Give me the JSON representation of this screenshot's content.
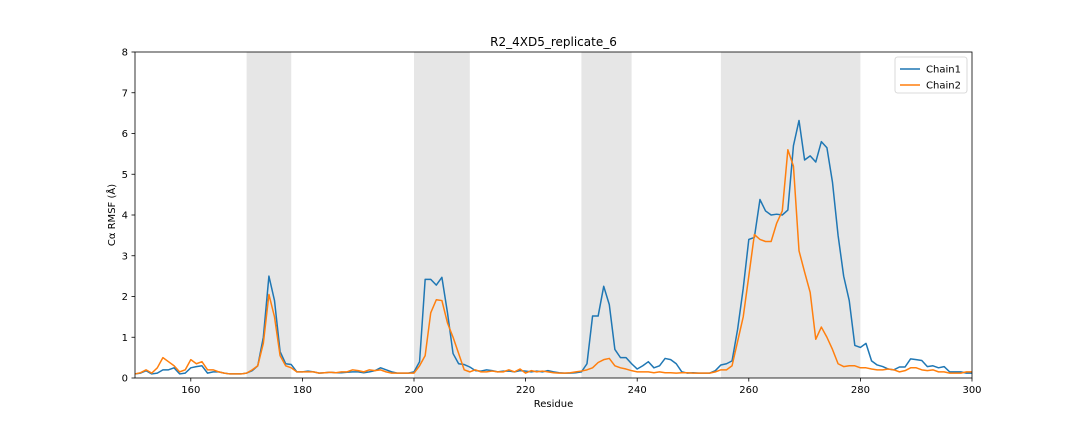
{
  "chart_data": {
    "type": "line",
    "title": "R2_4XD5_replicate_6",
    "xlabel": "Residue",
    "ylabel": "Cα RMSF (Å)",
    "xlim": [
      150,
      300
    ],
    "ylim": [
      0,
      8
    ],
    "xticks": [
      160,
      180,
      200,
      220,
      240,
      260,
      280,
      300
    ],
    "yticks": [
      0,
      1,
      2,
      3,
      4,
      5,
      6,
      7,
      8
    ],
    "grid": false,
    "legend_position": "upper right",
    "shaded_regions": [
      [
        170,
        178
      ],
      [
        200,
        210
      ],
      [
        230,
        239
      ],
      [
        255,
        280
      ]
    ],
    "shade_color": "#e6e6e6",
    "series": [
      {
        "name": "Chain1",
        "color": "#1f77b4",
        "points": [
          [
            150,
            0.1
          ],
          [
            151,
            0.12
          ],
          [
            152,
            0.18
          ],
          [
            153,
            0.1
          ],
          [
            154,
            0.12
          ],
          [
            155,
            0.2
          ],
          [
            156,
            0.2
          ],
          [
            157,
            0.25
          ],
          [
            158,
            0.1
          ],
          [
            159,
            0.12
          ],
          [
            160,
            0.25
          ],
          [
            161,
            0.28
          ],
          [
            162,
            0.3
          ],
          [
            163,
            0.12
          ],
          [
            164,
            0.15
          ],
          [
            165,
            0.15
          ],
          [
            166,
            0.12
          ],
          [
            167,
            0.1
          ],
          [
            168,
            0.1
          ],
          [
            169,
            0.1
          ],
          [
            170,
            0.12
          ],
          [
            171,
            0.18
          ],
          [
            172,
            0.3
          ],
          [
            173,
            1.0
          ],
          [
            174,
            2.5
          ],
          [
            175,
            1.9
          ],
          [
            176,
            0.65
          ],
          [
            177,
            0.35
          ],
          [
            178,
            0.33
          ],
          [
            179,
            0.15
          ],
          [
            180,
            0.15
          ],
          [
            181,
            0.17
          ],
          [
            182,
            0.15
          ],
          [
            183,
            0.12
          ],
          [
            184,
            0.13
          ],
          [
            185,
            0.14
          ],
          [
            186,
            0.13
          ],
          [
            187,
            0.13
          ],
          [
            188,
            0.14
          ],
          [
            189,
            0.15
          ],
          [
            190,
            0.15
          ],
          [
            191,
            0.13
          ],
          [
            192,
            0.15
          ],
          [
            193,
            0.18
          ],
          [
            194,
            0.25
          ],
          [
            195,
            0.2
          ],
          [
            196,
            0.15
          ],
          [
            197,
            0.12
          ],
          [
            198,
            0.12
          ],
          [
            199,
            0.12
          ],
          [
            200,
            0.15
          ],
          [
            201,
            0.4
          ],
          [
            202,
            2.42
          ],
          [
            203,
            2.42
          ],
          [
            204,
            2.28
          ],
          [
            205,
            2.47
          ],
          [
            206,
            1.6
          ],
          [
            207,
            0.6
          ],
          [
            208,
            0.35
          ],
          [
            209,
            0.33
          ],
          [
            210,
            0.27
          ],
          [
            211,
            0.18
          ],
          [
            212,
            0.17
          ],
          [
            213,
            0.2
          ],
          [
            214,
            0.18
          ],
          [
            215,
            0.15
          ],
          [
            216,
            0.17
          ],
          [
            217,
            0.17
          ],
          [
            218,
            0.15
          ],
          [
            219,
            0.18
          ],
          [
            220,
            0.17
          ],
          [
            221,
            0.15
          ],
          [
            222,
            0.17
          ],
          [
            223,
            0.15
          ],
          [
            224,
            0.18
          ],
          [
            225,
            0.15
          ],
          [
            226,
            0.13
          ],
          [
            227,
            0.12
          ],
          [
            228,
            0.12
          ],
          [
            229,
            0.13
          ],
          [
            230,
            0.15
          ],
          [
            231,
            0.35
          ],
          [
            232,
            1.52
          ],
          [
            233,
            1.52
          ],
          [
            234,
            2.25
          ],
          [
            235,
            1.8
          ],
          [
            236,
            0.7
          ],
          [
            237,
            0.5
          ],
          [
            238,
            0.5
          ],
          [
            239,
            0.35
          ],
          [
            240,
            0.22
          ],
          [
            241,
            0.3
          ],
          [
            242,
            0.4
          ],
          [
            243,
            0.25
          ],
          [
            244,
            0.3
          ],
          [
            245,
            0.48
          ],
          [
            246,
            0.45
          ],
          [
            247,
            0.35
          ],
          [
            248,
            0.15
          ],
          [
            249,
            0.12
          ],
          [
            250,
            0.13
          ],
          [
            251,
            0.12
          ],
          [
            252,
            0.12
          ],
          [
            253,
            0.12
          ],
          [
            254,
            0.18
          ],
          [
            255,
            0.32
          ],
          [
            256,
            0.35
          ],
          [
            257,
            0.42
          ],
          [
            258,
            1.2
          ],
          [
            259,
            2.2
          ],
          [
            260,
            3.4
          ],
          [
            261,
            3.45
          ],
          [
            262,
            4.38
          ],
          [
            263,
            4.1
          ],
          [
            264,
            4.0
          ],
          [
            265,
            4.02
          ],
          [
            266,
            4.0
          ],
          [
            267,
            4.12
          ],
          [
            268,
            5.7
          ],
          [
            269,
            6.32
          ],
          [
            270,
            5.35
          ],
          [
            271,
            5.45
          ],
          [
            272,
            5.3
          ],
          [
            273,
            5.8
          ],
          [
            274,
            5.65
          ],
          [
            275,
            4.8
          ],
          [
            276,
            3.5
          ],
          [
            277,
            2.5
          ],
          [
            278,
            1.9
          ],
          [
            279,
            0.8
          ],
          [
            280,
            0.75
          ],
          [
            281,
            0.85
          ],
          [
            282,
            0.42
          ],
          [
            283,
            0.32
          ],
          [
            284,
            0.28
          ],
          [
            285,
            0.22
          ],
          [
            286,
            0.2
          ],
          [
            287,
            0.27
          ],
          [
            288,
            0.27
          ],
          [
            289,
            0.47
          ],
          [
            290,
            0.45
          ],
          [
            291,
            0.43
          ],
          [
            292,
            0.28
          ],
          [
            293,
            0.3
          ],
          [
            294,
            0.25
          ],
          [
            295,
            0.28
          ],
          [
            296,
            0.15
          ],
          [
            297,
            0.15
          ],
          [
            298,
            0.15
          ],
          [
            299,
            0.12
          ],
          [
            300,
            0.12
          ]
        ]
      },
      {
        "name": "Chain2",
        "color": "#ff7f0e",
        "points": [
          [
            150,
            0.1
          ],
          [
            151,
            0.13
          ],
          [
            152,
            0.2
          ],
          [
            153,
            0.12
          ],
          [
            154,
            0.25
          ],
          [
            155,
            0.5
          ],
          [
            156,
            0.4
          ],
          [
            157,
            0.3
          ],
          [
            158,
            0.15
          ],
          [
            159,
            0.2
          ],
          [
            160,
            0.45
          ],
          [
            161,
            0.35
          ],
          [
            162,
            0.4
          ],
          [
            163,
            0.2
          ],
          [
            164,
            0.2
          ],
          [
            165,
            0.15
          ],
          [
            166,
            0.12
          ],
          [
            167,
            0.1
          ],
          [
            168,
            0.1
          ],
          [
            169,
            0.1
          ],
          [
            170,
            0.12
          ],
          [
            171,
            0.2
          ],
          [
            172,
            0.3
          ],
          [
            173,
            0.85
          ],
          [
            174,
            2.05
          ],
          [
            175,
            1.5
          ],
          [
            176,
            0.55
          ],
          [
            177,
            0.3
          ],
          [
            178,
            0.25
          ],
          [
            179,
            0.15
          ],
          [
            180,
            0.15
          ],
          [
            181,
            0.15
          ],
          [
            182,
            0.15
          ],
          [
            183,
            0.12
          ],
          [
            184,
            0.13
          ],
          [
            185,
            0.14
          ],
          [
            186,
            0.13
          ],
          [
            187,
            0.15
          ],
          [
            188,
            0.15
          ],
          [
            189,
            0.2
          ],
          [
            190,
            0.18
          ],
          [
            191,
            0.15
          ],
          [
            192,
            0.2
          ],
          [
            193,
            0.18
          ],
          [
            194,
            0.2
          ],
          [
            195,
            0.15
          ],
          [
            196,
            0.12
          ],
          [
            197,
            0.12
          ],
          [
            198,
            0.12
          ],
          [
            199,
            0.12
          ],
          [
            200,
            0.12
          ],
          [
            201,
            0.3
          ],
          [
            202,
            0.55
          ],
          [
            203,
            1.6
          ],
          [
            204,
            1.92
          ],
          [
            205,
            1.9
          ],
          [
            206,
            1.35
          ],
          [
            207,
            1.0
          ],
          [
            208,
            0.6
          ],
          [
            209,
            0.2
          ],
          [
            210,
            0.15
          ],
          [
            211,
            0.2
          ],
          [
            212,
            0.15
          ],
          [
            213,
            0.15
          ],
          [
            214,
            0.17
          ],
          [
            215,
            0.15
          ],
          [
            216,
            0.15
          ],
          [
            217,
            0.2
          ],
          [
            218,
            0.15
          ],
          [
            219,
            0.22
          ],
          [
            220,
            0.12
          ],
          [
            221,
            0.18
          ],
          [
            222,
            0.15
          ],
          [
            223,
            0.17
          ],
          [
            224,
            0.15
          ],
          [
            225,
            0.13
          ],
          [
            226,
            0.12
          ],
          [
            227,
            0.12
          ],
          [
            228,
            0.13
          ],
          [
            229,
            0.15
          ],
          [
            230,
            0.17
          ],
          [
            231,
            0.2
          ],
          [
            232,
            0.25
          ],
          [
            233,
            0.38
          ],
          [
            234,
            0.45
          ],
          [
            235,
            0.48
          ],
          [
            236,
            0.3
          ],
          [
            237,
            0.25
          ],
          [
            238,
            0.22
          ],
          [
            239,
            0.18
          ],
          [
            240,
            0.15
          ],
          [
            241,
            0.15
          ],
          [
            242,
            0.15
          ],
          [
            243,
            0.13
          ],
          [
            244,
            0.15
          ],
          [
            245,
            0.13
          ],
          [
            246,
            0.13
          ],
          [
            247,
            0.12
          ],
          [
            248,
            0.13
          ],
          [
            249,
            0.13
          ],
          [
            250,
            0.12
          ],
          [
            251,
            0.12
          ],
          [
            252,
            0.12
          ],
          [
            253,
            0.12
          ],
          [
            254,
            0.15
          ],
          [
            255,
            0.2
          ],
          [
            256,
            0.2
          ],
          [
            257,
            0.3
          ],
          [
            258,
            0.9
          ],
          [
            259,
            1.5
          ],
          [
            260,
            2.5
          ],
          [
            261,
            3.52
          ],
          [
            262,
            3.4
          ],
          [
            263,
            3.35
          ],
          [
            264,
            3.35
          ],
          [
            265,
            3.8
          ],
          [
            266,
            4.1
          ],
          [
            267,
            5.6
          ],
          [
            268,
            5.2
          ],
          [
            269,
            3.12
          ],
          [
            270,
            2.6
          ],
          [
            271,
            2.1
          ],
          [
            272,
            0.95
          ],
          [
            273,
            1.25
          ],
          [
            274,
            1.0
          ],
          [
            275,
            0.7
          ],
          [
            276,
            0.35
          ],
          [
            277,
            0.28
          ],
          [
            278,
            0.3
          ],
          [
            279,
            0.3
          ],
          [
            280,
            0.25
          ],
          [
            281,
            0.25
          ],
          [
            282,
            0.22
          ],
          [
            283,
            0.2
          ],
          [
            284,
            0.2
          ],
          [
            285,
            0.22
          ],
          [
            286,
            0.2
          ],
          [
            287,
            0.15
          ],
          [
            288,
            0.18
          ],
          [
            289,
            0.25
          ],
          [
            290,
            0.25
          ],
          [
            291,
            0.2
          ],
          [
            292,
            0.18
          ],
          [
            293,
            0.2
          ],
          [
            294,
            0.15
          ],
          [
            295,
            0.15
          ],
          [
            296,
            0.12
          ],
          [
            297,
            0.12
          ],
          [
            298,
            0.12
          ],
          [
            299,
            0.15
          ],
          [
            300,
            0.15
          ]
        ]
      }
    ]
  }
}
